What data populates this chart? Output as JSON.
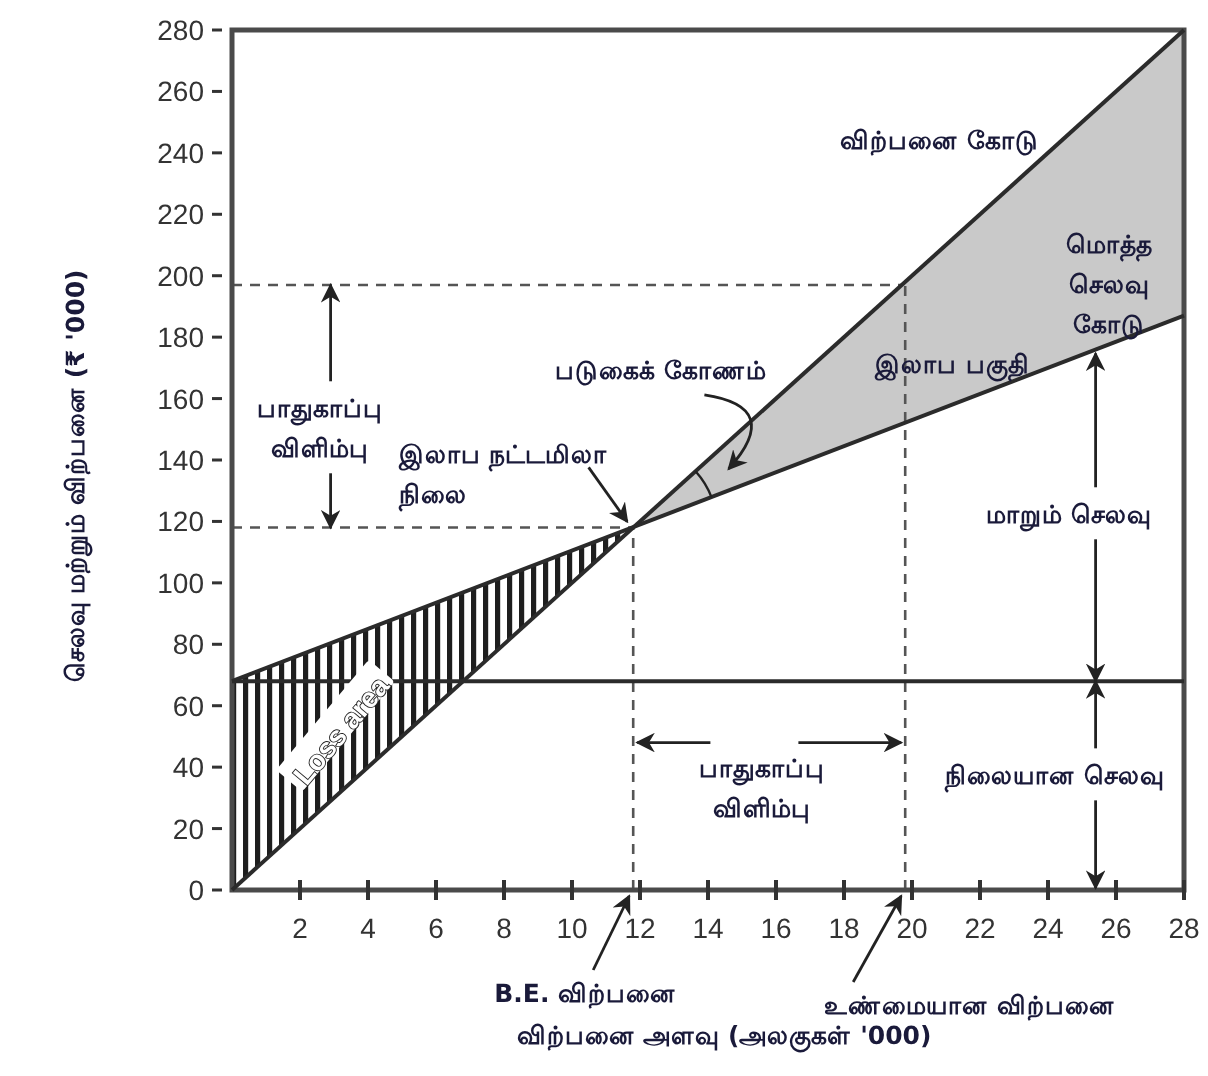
{
  "chart_data": {
    "type": "line",
    "xlabel": "விற்பனை அளவு (அலகுகள் '000)",
    "ylabel": "செலவு மற்றும் விற்பனை (₹ '000)",
    "xlim": [
      0,
      28
    ],
    "ylim": [
      0,
      280
    ],
    "xticks": [
      2,
      4,
      6,
      8,
      10,
      12,
      14,
      16,
      18,
      20,
      22,
      24,
      26,
      28
    ],
    "yticks": [
      0,
      20,
      40,
      60,
      80,
      100,
      120,
      140,
      160,
      180,
      200,
      220,
      240,
      260,
      280
    ],
    "x": [
      0,
      28
    ],
    "series": [
      {
        "values": [
          0,
          280
        ],
        "color": "#2b2b2b"
      },
      {
        "values": [
          68,
          187
        ],
        "color": "#2b2b2b"
      },
      {
        "values": [
          68,
          68
        ],
        "color": "#2b2b2b"
      }
    ],
    "ref_lines": [
      {
        "axis": "y",
        "value": 118,
        "color": "#555555",
        "line_style": "dashed"
      },
      {
        "axis": "x",
        "value": 11.8,
        "color": "#555555",
        "line_style": "dashed"
      },
      {
        "axis": "y",
        "value": 197,
        "color": "#555555",
        "line_style": "dashed"
      },
      {
        "axis": "x",
        "value": 19.8,
        "color": "#555555",
        "line_style": "dashed"
      }
    ],
    "annotations": [
      "விற்பனை கோடு",
      "மொத்த செலவு கோடு",
      "இலாப பகுதி",
      "படுகைக் கோணம்",
      {
        "text": "இலாப நட்டமிலா நிலை",
        "x": 11.8,
        "y": 118
      },
      {
        "text": "பாதுகாப்பு விளிம்பு",
        "x": 2.9,
        "y": 197
      },
      "Loss area",
      {
        "text": "மாறும் செலவு",
        "x": 25.4,
        "y": 176
      },
      {
        "text": "பாதுகாப்பு விளிம்பு",
        "x": 19.8,
        "y": 48
      },
      {
        "text": "நிலையான செலவு",
        "x": 25.4,
        "y": 68
      },
      {
        "text": "B.E. விற்பனை",
        "x": 11.8,
        "y": 0
      },
      {
        "text": "உண்மையான விற்பனை",
        "x": 19.8,
        "y": 0
      }
    ]
  }
}
